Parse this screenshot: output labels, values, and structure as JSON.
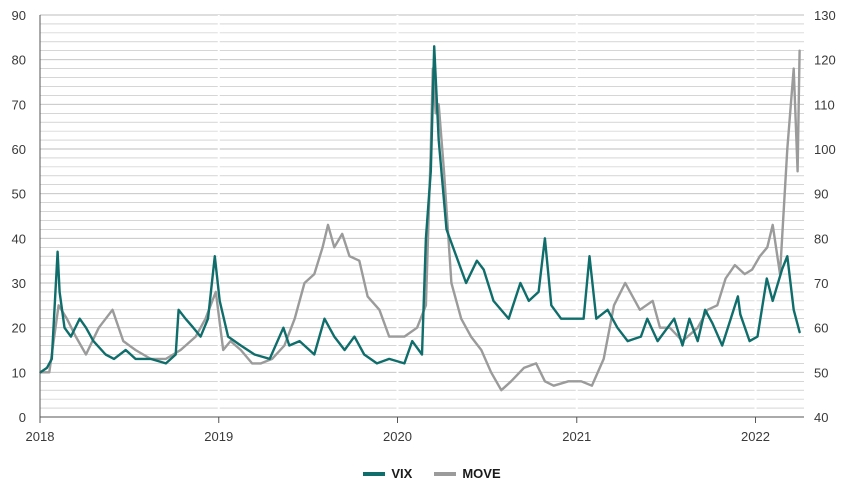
{
  "colors": {
    "vix": "#0f6e6b",
    "move": "#9b9b9b",
    "grid": "#bdbdbd",
    "axis": "#555555"
  },
  "legend": {
    "vix": "VIX",
    "move": "MOVE"
  },
  "chart_data": {
    "type": "line",
    "x_type": "date",
    "xlim": [
      "2018-01-01",
      "2022-04-10"
    ],
    "x_ticks": [
      "2018-01-01",
      "2019-01-01",
      "2020-01-01",
      "2021-01-01",
      "2022-01-01"
    ],
    "x_tick_labels": [
      "2018",
      "2019",
      "2020",
      "2021",
      "2022"
    ],
    "y_left": {
      "lim": [
        0,
        90
      ],
      "ticks": [
        0,
        10,
        20,
        30,
        40,
        50,
        60,
        70,
        80,
        90
      ],
      "minor_step": 2
    },
    "y_right": {
      "lim": [
        40,
        130
      ],
      "ticks": [
        40,
        50,
        60,
        70,
        80,
        90,
        100,
        110,
        120,
        130
      ]
    },
    "grid": "horizontal",
    "legend_position": "bottom-center",
    "series": [
      {
        "name": "VIX",
        "axis": "left",
        "x": [
          "2018-01-02",
          "2018-01-15",
          "2018-01-25",
          "2018-02-06",
          "2018-02-10",
          "2018-02-20",
          "2018-03-05",
          "2018-03-23",
          "2018-04-05",
          "2018-04-20",
          "2018-05-15",
          "2018-06-01",
          "2018-06-25",
          "2018-07-15",
          "2018-08-15",
          "2018-09-15",
          "2018-10-05",
          "2018-10-11",
          "2018-10-25",
          "2018-11-10",
          "2018-11-25",
          "2018-12-10",
          "2018-12-24",
          "2019-01-03",
          "2019-01-20",
          "2019-02-15",
          "2019-03-15",
          "2019-04-15",
          "2019-05-13",
          "2019-05-25",
          "2019-06-15",
          "2019-07-15",
          "2019-08-05",
          "2019-08-15",
          "2019-08-25",
          "2019-09-15",
          "2019-10-05",
          "2019-10-25",
          "2019-11-20",
          "2019-12-15",
          "2020-01-15",
          "2020-01-31",
          "2020-02-20",
          "2020-02-28",
          "2020-03-09",
          "2020-03-16",
          "2020-03-25",
          "2020-04-10",
          "2020-04-30",
          "2020-05-20",
          "2020-06-11",
          "2020-06-25",
          "2020-07-15",
          "2020-08-15",
          "2020-09-08",
          "2020-09-25",
          "2020-10-15",
          "2020-10-28",
          "2020-11-10",
          "2020-11-30",
          "2020-12-20",
          "2021-01-15",
          "2021-01-27",
          "2021-02-10",
          "2021-03-05",
          "2021-03-25",
          "2021-04-15",
          "2021-05-12",
          "2021-05-25",
          "2021-06-15",
          "2021-07-19",
          "2021-08-05",
          "2021-08-19",
          "2021-09-05",
          "2021-09-20",
          "2021-10-05",
          "2021-10-25",
          "2021-11-26",
          "2021-12-01",
          "2021-12-20",
          "2022-01-05",
          "2022-01-24",
          "2022-02-05",
          "2022-02-24",
          "2022-03-07",
          "2022-03-20",
          "2022-04-01"
        ],
        "y": [
          10,
          11,
          13,
          37,
          28,
          20,
          18,
          22,
          20,
          17,
          14,
          13,
          15,
          13,
          13,
          12,
          14,
          24,
          22,
          20,
          18,
          22,
          36,
          26,
          18,
          16,
          14,
          13,
          20,
          16,
          17,
          14,
          22,
          20,
          18,
          15,
          18,
          14,
          12,
          13,
          12,
          17,
          14,
          40,
          55,
          83,
          62,
          42,
          36,
          30,
          35,
          33,
          26,
          22,
          30,
          26,
          28,
          40,
          25,
          22,
          22,
          22,
          36,
          22,
          24,
          20,
          17,
          18,
          22,
          17,
          22,
          16,
          22,
          17,
          24,
          21,
          16,
          27,
          23,
          17,
          18,
          31,
          26,
          33,
          36,
          24,
          19
        ]
      },
      {
        "name": "MOVE",
        "axis": "right",
        "x": [
          "2018-01-02",
          "2018-01-20",
          "2018-02-08",
          "2018-02-25",
          "2018-03-15",
          "2018-04-05",
          "2018-05-01",
          "2018-05-29",
          "2018-06-20",
          "2018-07-15",
          "2018-08-15",
          "2018-09-15",
          "2018-10-15",
          "2018-11-15",
          "2018-12-05",
          "2018-12-26",
          "2019-01-10",
          "2019-01-25",
          "2019-02-15",
          "2019-03-10",
          "2019-03-28",
          "2019-04-20",
          "2019-05-15",
          "2019-06-05",
          "2019-06-25",
          "2019-07-15",
          "2019-08-01",
          "2019-08-12",
          "2019-08-25",
          "2019-09-10",
          "2019-09-25",
          "2019-10-15",
          "2019-11-01",
          "2019-11-25",
          "2019-12-15",
          "2020-01-15",
          "2020-02-10",
          "2020-02-28",
          "2020-03-09",
          "2020-03-13",
          "2020-03-19",
          "2020-03-25",
          "2020-04-05",
          "2020-04-20",
          "2020-05-10",
          "2020-05-30",
          "2020-06-20",
          "2020-07-10",
          "2020-07-31",
          "2020-08-20",
          "2020-09-15",
          "2020-10-10",
          "2020-10-28",
          "2020-11-15",
          "2020-12-15",
          "2021-01-10",
          "2021-02-01",
          "2021-02-25",
          "2021-03-18",
          "2021-04-10",
          "2021-05-10",
          "2021-06-05",
          "2021-06-20",
          "2021-07-10",
          "2021-08-05",
          "2021-09-05",
          "2021-09-25",
          "2021-10-15",
          "2021-11-01",
          "2021-11-20",
          "2021-12-10",
          "2021-12-25",
          "2022-01-10",
          "2022-01-25",
          "2022-02-05",
          "2022-02-20",
          "2022-03-07",
          "2022-03-20",
          "2022-03-28",
          "2022-04-01"
        ],
        "y": [
          50,
          50,
          65,
          62,
          58,
          54,
          60,
          64,
          57,
          55,
          53,
          53,
          55,
          58,
          62,
          68,
          55,
          57,
          55,
          52,
          52,
          53,
          56,
          62,
          70,
          72,
          78,
          83,
          78,
          81,
          76,
          75,
          67,
          64,
          58,
          58,
          60,
          65,
          100,
          118,
          108,
          110,
          95,
          70,
          62,
          58,
          55,
          50,
          46,
          48,
          51,
          52,
          48,
          47,
          48,
          48,
          47,
          53,
          65,
          70,
          64,
          66,
          60,
          60,
          57,
          60,
          64,
          65,
          71,
          74,
          72,
          73,
          76,
          78,
          83,
          72,
          100,
          118,
          95,
          122
        ]
      }
    ]
  }
}
